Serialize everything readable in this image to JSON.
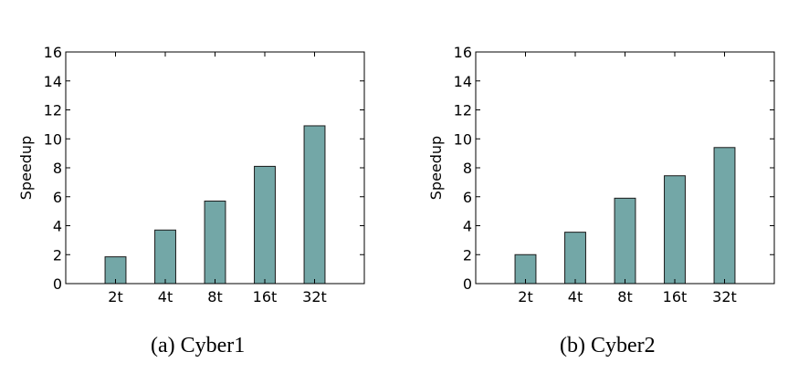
{
  "chart_data": [
    {
      "type": "bar",
      "categories": [
        "2t",
        "4t",
        "8t",
        "16t",
        "32t"
      ],
      "values": [
        1.85,
        3.7,
        5.7,
        8.1,
        10.9
      ],
      "ylabel": "Speedup",
      "xlabel": "",
      "ylim": [
        0,
        16
      ],
      "yticks": [
        0,
        2,
        4,
        6,
        8,
        10,
        12,
        14,
        16
      ],
      "caption": "(a) Cyber1",
      "bar_color": "#73a7a7",
      "grid": false
    },
    {
      "type": "bar",
      "categories": [
        "2t",
        "4t",
        "8t",
        "16t",
        "32t"
      ],
      "values": [
        2.0,
        3.55,
        5.9,
        7.45,
        9.4
      ],
      "ylabel": "Speedup",
      "xlabel": "",
      "ylim": [
        0,
        16
      ],
      "yticks": [
        0,
        2,
        4,
        6,
        8,
        10,
        12,
        14,
        16
      ],
      "caption": "(b) Cyber2",
      "bar_color": "#73a7a7",
      "grid": false
    }
  ]
}
